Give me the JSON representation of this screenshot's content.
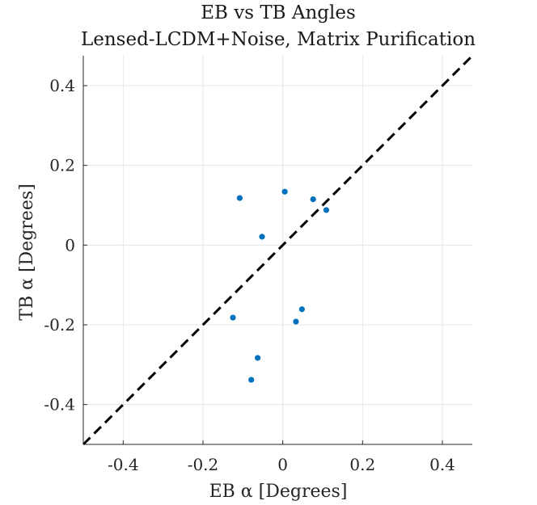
{
  "chart_data": {
    "type": "scatter",
    "title": "EB vs TB Angles",
    "subtitle": "Lensed-LCDM+Noise, Matrix Purification",
    "xlabel": "EB α [Degrees]",
    "ylabel": "TB α [Degrees]",
    "xlim": [
      -0.5,
      0.475
    ],
    "ylim": [
      -0.5,
      0.475
    ],
    "xticks": [
      -0.4,
      -0.2,
      0,
      0.2,
      0.4
    ],
    "yticks": [
      -0.4,
      -0.2,
      0,
      0.2,
      0.4
    ],
    "xtick_labels": [
      "-0.4",
      "-0.2",
      "0",
      "0.2",
      "0.4"
    ],
    "ytick_labels": [
      "-0.4",
      "-0.2",
      "0",
      "0.2",
      "0.4"
    ],
    "grid": true,
    "reference_line": {
      "style": "dashed",
      "color": "#000000",
      "slope": 1,
      "intercept": 0
    },
    "series": [
      {
        "color": "#0072bd",
        "x": [
          -0.108,
          0.005,
          0.076,
          0.109,
          -0.052,
          -0.125,
          0.048,
          0.033,
          -0.063,
          -0.079
        ],
        "y": [
          0.118,
          0.134,
          0.115,
          0.088,
          0.021,
          -0.182,
          -0.161,
          -0.192,
          -0.283,
          -0.338
        ]
      }
    ]
  }
}
